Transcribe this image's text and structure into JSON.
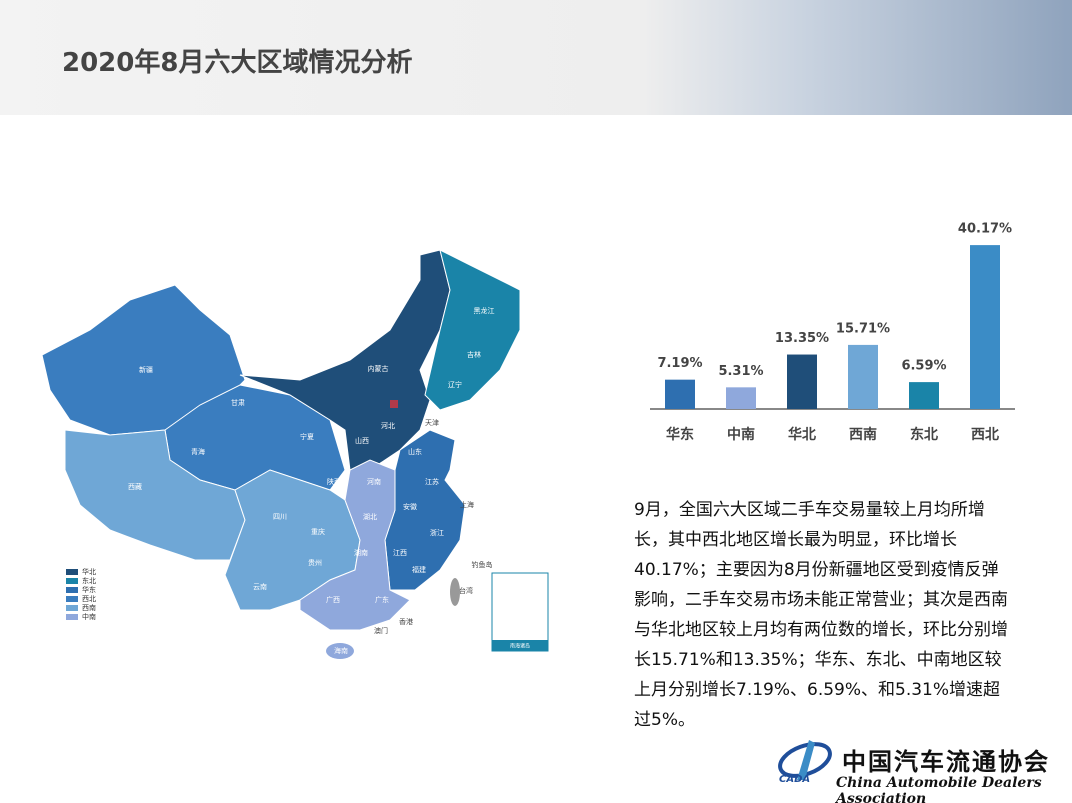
{
  "title": "2020年8月六大区域情况分析",
  "chart_data": {
    "type": "bar",
    "categories": [
      "华东",
      "中南",
      "华北",
      "西南",
      "东北",
      "西北"
    ],
    "values": [
      7.19,
      5.31,
      13.35,
      15.71,
      6.59,
      40.17
    ],
    "value_labels": [
      "7.19%",
      "5.31%",
      "13.35%",
      "15.71%",
      "6.59%",
      "40.17%"
    ],
    "colors": [
      "#2e6fb0",
      "#8fa8dc",
      "#1f4e79",
      "#6fa7d6",
      "#1a84a8",
      "#3b8cc6"
    ]
  },
  "map": {
    "legend": [
      "华北",
      "东北",
      "华东",
      "西北",
      "西南",
      "中南"
    ],
    "legend_colors": [
      "#1f4e79",
      "#1a84a8",
      "#2e6fb0",
      "#3a7dbf",
      "#6fa7d6",
      "#8fa8dc"
    ],
    "labels": [
      "新疆",
      "西藏",
      "青海",
      "甘肃",
      "内蒙古",
      "黑龙江",
      "吉林",
      "辽宁",
      "天津",
      "河北",
      "山西",
      "宁夏",
      "陕西",
      "山东",
      "河南",
      "江苏",
      "上海",
      "安徽",
      "湖北",
      "浙江",
      "四川",
      "重庆",
      "贵州",
      "湖南",
      "江西",
      "福建",
      "云南",
      "广西",
      "广东",
      "澳门",
      "香港",
      "海南",
      "台湾",
      "钓鱼岛",
      "南海诸岛"
    ]
  },
  "paragraph": "9月，全国六大区域二手车交易量较上月均所增长，其中西北地区增长最为明显，环比增长40.17%；主要因为8月份新疆地区受到疫情反弹影响，二手车交易市场未能正常营业；其次是西南与华北地区较上月均有两位数的增长，环比分别增长15.71%和13.35%；华东、东北、中南地区较上月分别增长7.19%、6.59%、和5.31%增速超过5%。",
  "logo": {
    "name": "中国汽车流通协会",
    "english": "China Automobile Dealers Association",
    "abbr": "CADA"
  }
}
